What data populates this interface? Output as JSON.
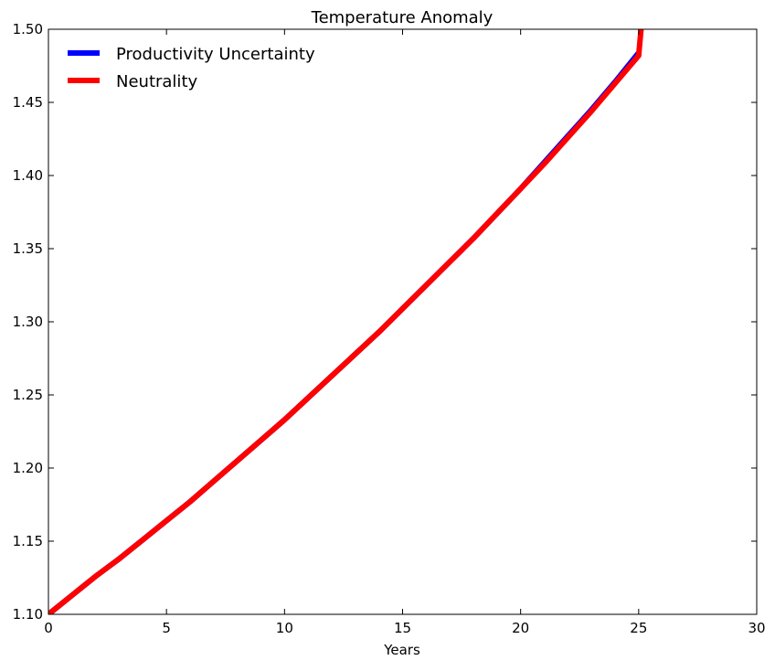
{
  "chart_data": {
    "type": "line",
    "title": "Temperature Anomaly",
    "xlabel": "Years",
    "ylabel": "",
    "xlim": [
      0,
      30
    ],
    "ylim": [
      1.1,
      1.5
    ],
    "xticks": [
      0,
      5,
      10,
      15,
      20,
      25,
      30
    ],
    "xtick_labels": [
      "0",
      "5",
      "10",
      "15",
      "20",
      "25",
      "30"
    ],
    "yticks": [
      1.1,
      1.15,
      1.2,
      1.25,
      1.3,
      1.35,
      1.4,
      1.45,
      1.5
    ],
    "ytick_labels": [
      "1.10",
      "1.15",
      "1.20",
      "1.25",
      "1.30",
      "1.35",
      "1.40",
      "1.45",
      "1.50"
    ],
    "grid": false,
    "legend_position": "top-left",
    "series": [
      {
        "name": "Productivity Uncertainty",
        "color": "#0000ff",
        "x": [
          0,
          1,
          2,
          3,
          4,
          5,
          6,
          7,
          8,
          9,
          10,
          11,
          12,
          13,
          14,
          15,
          16,
          17,
          18,
          19,
          20,
          21,
          22,
          23,
          24,
          25
        ],
        "y": [
          1.1,
          1.113,
          1.126,
          1.138,
          1.151,
          1.164,
          1.177,
          1.191,
          1.205,
          1.219,
          1.233,
          1.248,
          1.263,
          1.278,
          1.293,
          1.309,
          1.325,
          1.341,
          1.357,
          1.374,
          1.391,
          1.409,
          1.427,
          1.445,
          1.464,
          1.484
        ]
      },
      {
        "name": "Neutrality",
        "color": "#ff0000",
        "x": [
          0,
          1,
          2,
          3,
          4,
          5,
          6,
          7,
          8,
          9,
          10,
          11,
          12,
          13,
          14,
          15,
          16,
          17,
          18,
          19,
          20,
          21,
          22,
          23,
          24,
          25,
          25.1
        ],
        "y": [
          1.1,
          1.113,
          1.126,
          1.138,
          1.151,
          1.164,
          1.177,
          1.191,
          1.205,
          1.219,
          1.233,
          1.248,
          1.263,
          1.278,
          1.293,
          1.309,
          1.325,
          1.341,
          1.357,
          1.374,
          1.391,
          1.408,
          1.426,
          1.444,
          1.463,
          1.482,
          1.5
        ]
      }
    ]
  }
}
